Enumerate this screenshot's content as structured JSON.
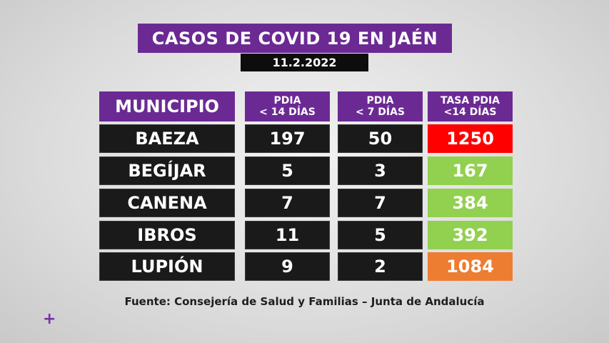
{
  "title": "CASOS DE COVID 19 EN JAÉN",
  "date": "11.2.2022",
  "headers": {
    "municipio": "MUNICIPIO",
    "pdia14_l1": "PDIA",
    "pdia14_l2": "< 14 DÍAS",
    "pdia7_l1": "PDIA",
    "pdia7_l2": "< 7 DÍAS",
    "tasa_l1": "TASA PDIA",
    "tasa_l2": "<14 DÍAS"
  },
  "rows": [
    {
      "municipio": "BAEZA",
      "pdia14": "197",
      "pdia7": "50",
      "tasa": "1250",
      "tasa_color": "#ff0000"
    },
    {
      "municipio": "BEGÍJAR",
      "pdia14": "5",
      "pdia7": "3",
      "tasa": "167",
      "tasa_color": "#92d050"
    },
    {
      "municipio": "CANENA",
      "pdia14": "7",
      "pdia7": "7",
      "tasa": "384",
      "tasa_color": "#92d050"
    },
    {
      "municipio": "IBROS",
      "pdia14": "11",
      "pdia7": "5",
      "tasa": "392",
      "tasa_color": "#92d050"
    },
    {
      "municipio": "LUPIÓN",
      "pdia14": "9",
      "pdia7": "2",
      "tasa": "1084",
      "tasa_color": "#ed7d31"
    }
  ],
  "source": "Fuente: Consejería de Salud y Familias – Junta de Andalucía",
  "plus_glyph": "+",
  "colors": {
    "purple": "#6b2a93",
    "dark": "#1a1a1a"
  }
}
